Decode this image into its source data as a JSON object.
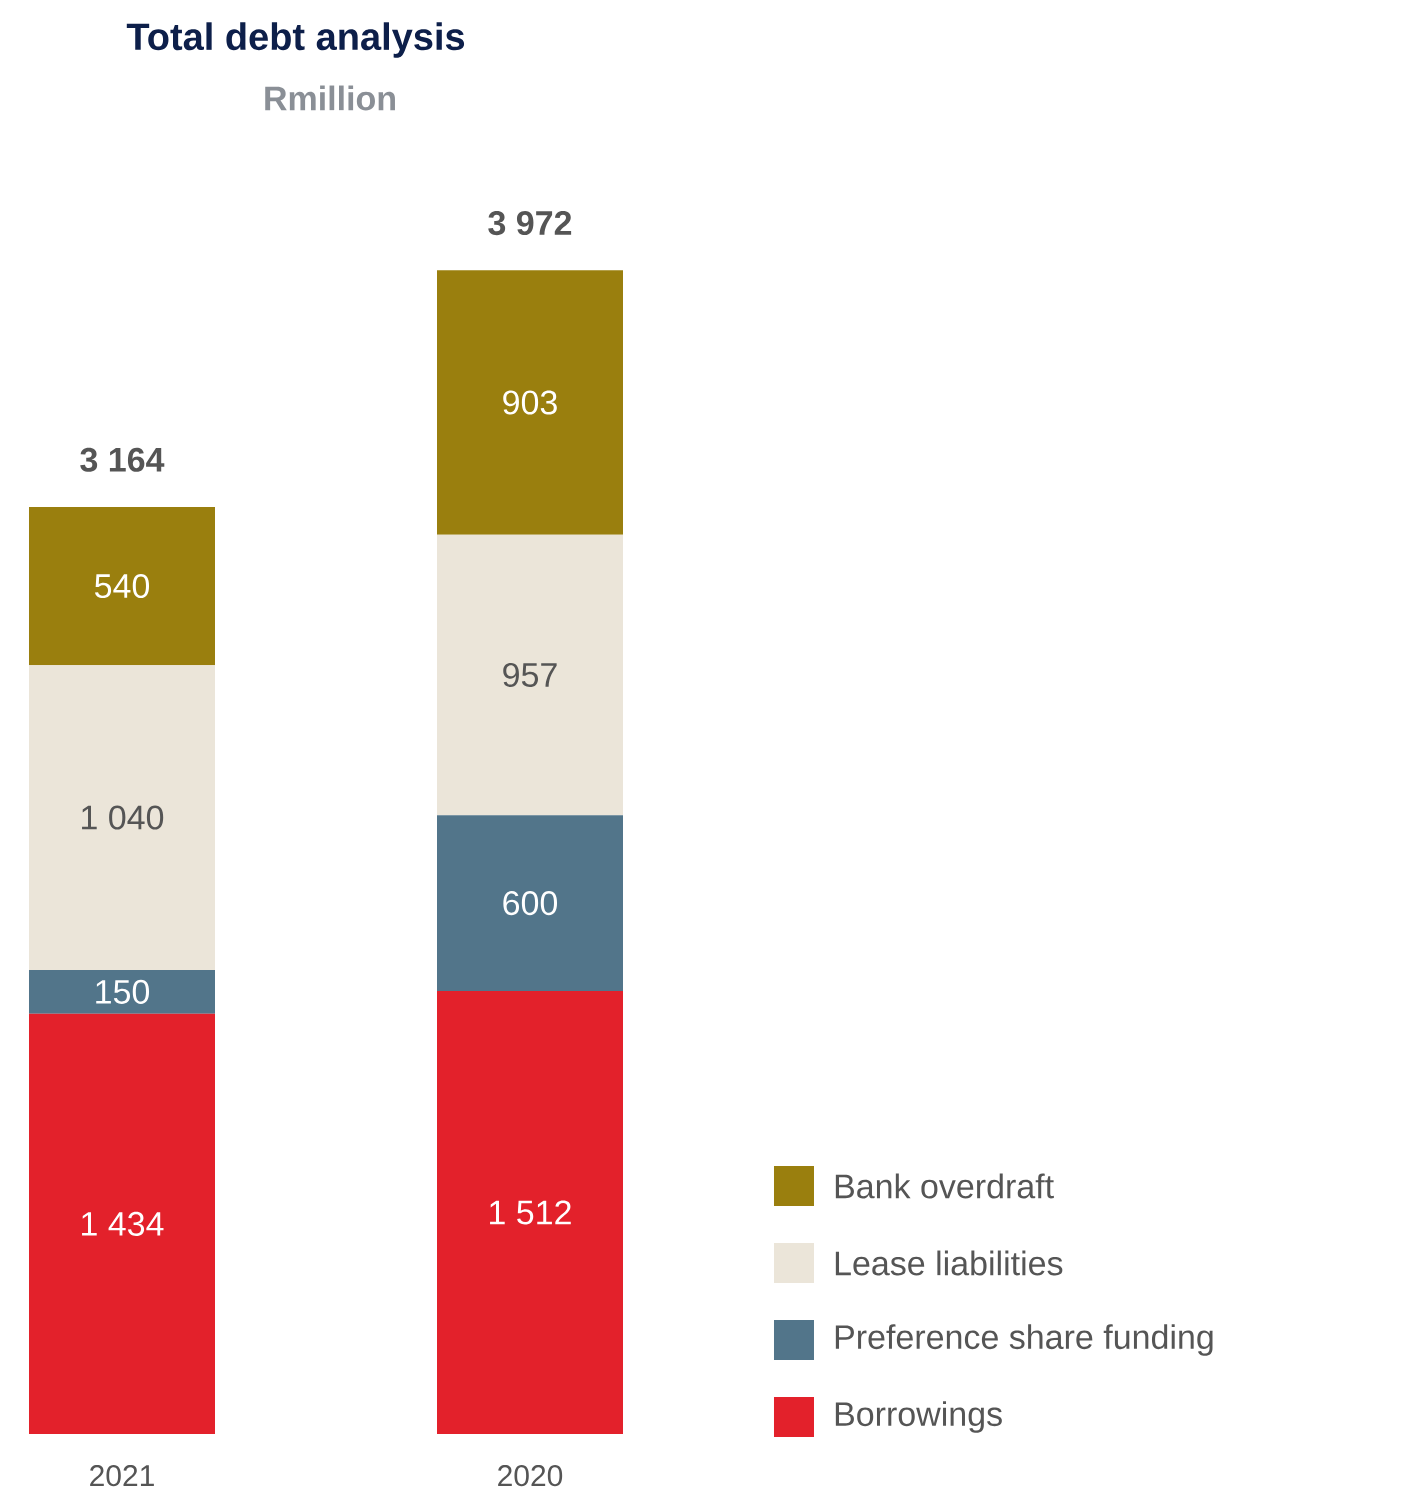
{
  "chart_data": {
    "type": "bar",
    "title": "Total debt analysis",
    "subtitle": "Rmillion",
    "categories": [
      "2021",
      "2020"
    ],
    "stacked": true,
    "legend": "bottom right",
    "totals": [
      "3 164",
      "3 972"
    ],
    "series": [
      {
        "name": "Borrowings",
        "color": "#e3212b",
        "values": [
          1434,
          1512
        ],
        "value_labels": [
          "1 434",
          "1 512"
        ]
      },
      {
        "name": "Preference share funding",
        "color": "#52758a",
        "values": [
          150,
          600
        ],
        "value_labels": [
          "150",
          "600"
        ]
      },
      {
        "name": "Lease liabilities",
        "color": "#ebe5d9",
        "values": [
          1040,
          957
        ],
        "value_labels": [
          "1 040",
          "957"
        ]
      },
      {
        "name": "Bank overdraft",
        "color": "#9a7f0e",
        "values": [
          540,
          903
        ],
        "value_labels": [
          "540",
          "903"
        ]
      }
    ]
  }
}
